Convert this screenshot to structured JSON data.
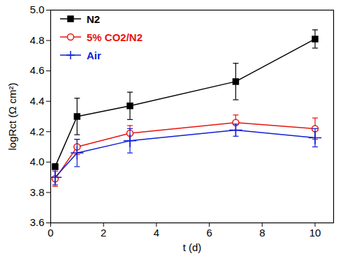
{
  "chart_data": {
    "type": "line",
    "x_label": "t (d)",
    "y_label": "logRct (Ω cm²)",
    "x": [
      0.17,
      1,
      3,
      7,
      10
    ],
    "series": [
      {
        "name": "N2",
        "color": "#000000",
        "marker": "square",
        "values": [
          3.97,
          4.3,
          4.37,
          4.53,
          4.81
        ],
        "errors": [
          0.02,
          0.12,
          0.09,
          0.12,
          0.06
        ]
      },
      {
        "name": "5% CO2/N2",
        "color": "#e8130f",
        "marker": "circle-open",
        "values": [
          3.89,
          4.1,
          4.19,
          4.26,
          4.22
        ],
        "errors": [
          0.05,
          0.05,
          0.05,
          0.05,
          0.07
        ]
      },
      {
        "name": "Air",
        "color": "#0d1fd6",
        "marker": "plus",
        "values": [
          3.9,
          4.06,
          4.14,
          4.21,
          4.16
        ],
        "errors": [
          0.05,
          0.09,
          0.08,
          0.04,
          0.06
        ]
      }
    ],
    "xlim": [
      0,
      10.7
    ],
    "ylim": [
      3.6,
      5.0
    ],
    "xticks": [
      0,
      2,
      4,
      6,
      8,
      10
    ],
    "yticks": [
      3.6,
      3.8,
      {
        "value": 4,
        "label": "4.0"
      },
      4.2,
      4.4,
      4.6,
      4.8,
      {
        "value": 5,
        "label": "5.0"
      }
    ],
    "legend": "top-left"
  }
}
